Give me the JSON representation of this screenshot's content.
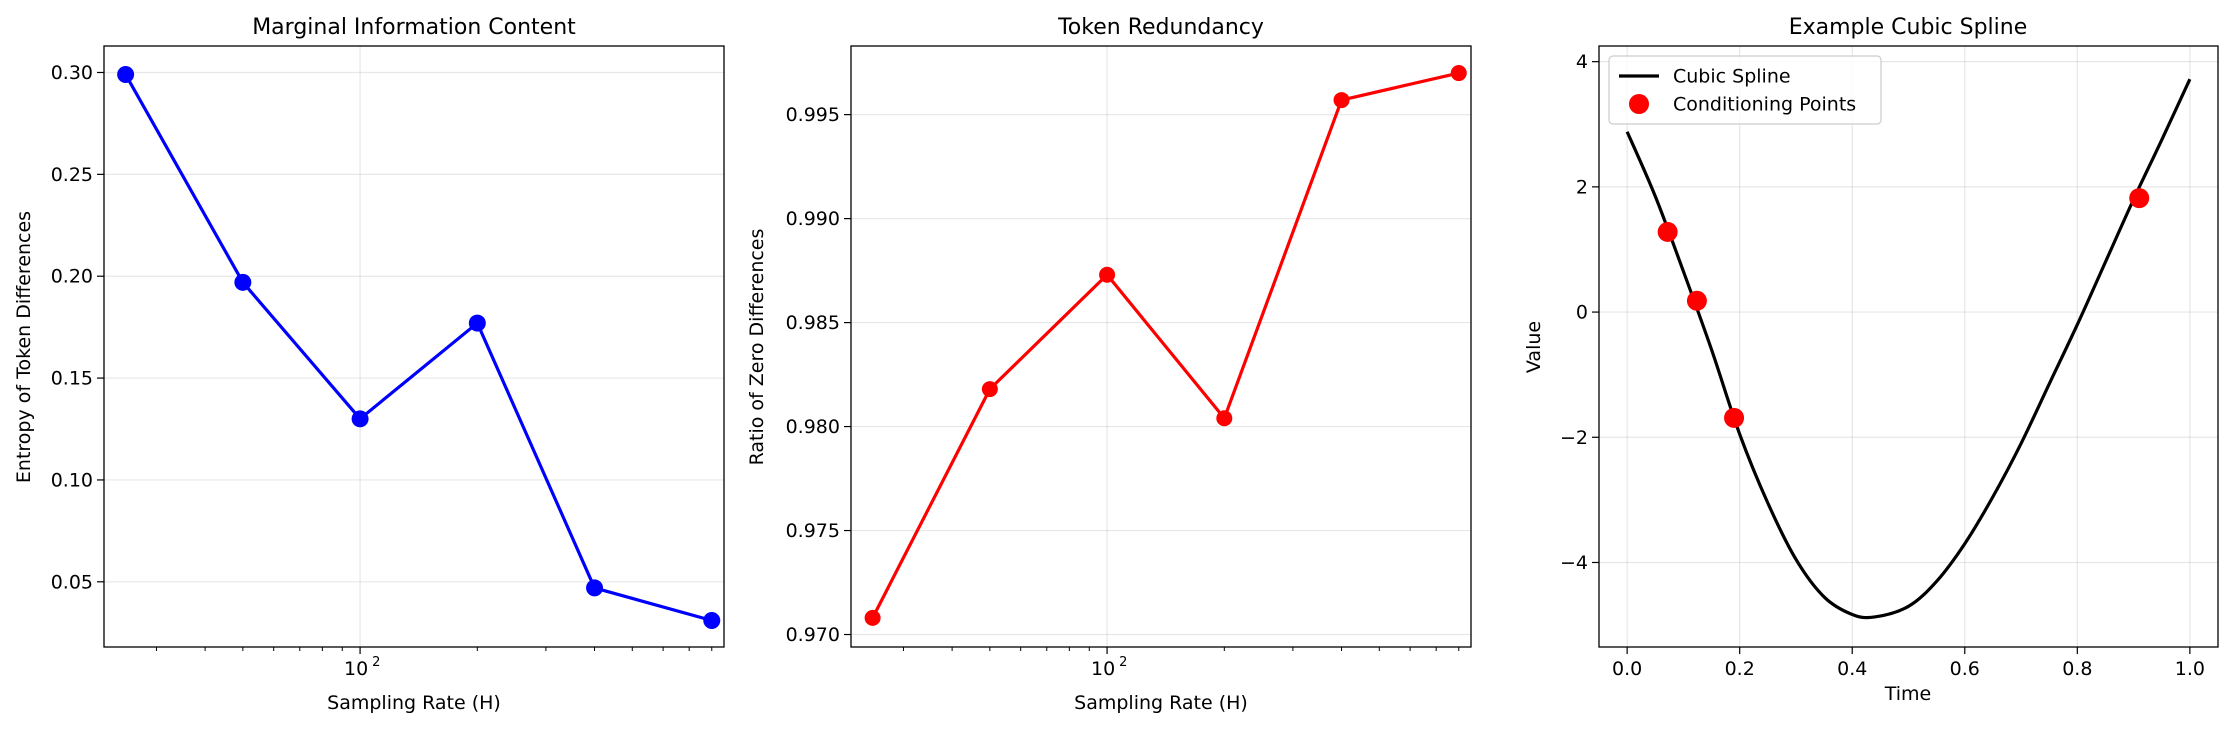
{
  "chart_data": [
    {
      "type": "line",
      "title": "Marginal Information Content",
      "xlabel": "Sampling Rate (H)",
      "ylabel": "Entropy of Token Differences",
      "xscale": "log",
      "xlim": [
        22,
        860
      ],
      "ylim": [
        0.018,
        0.313
      ],
      "x_major_ticks": [
        100
      ],
      "x_tick_labels": [
        "10",
        "2"
      ],
      "yticks": [
        0.05,
        0.1,
        0.15,
        0.2,
        0.25,
        0.3
      ],
      "y_tick_labels": [
        "0.05",
        "0.10",
        "0.15",
        "0.20",
        "0.25",
        "0.30"
      ],
      "grid": true,
      "color": "#0000ff",
      "series": [
        {
          "x": [
            25,
            50,
            100,
            200,
            400,
            800
          ],
          "y": [
            0.299,
            0.197,
            0.13,
            0.177,
            0.047,
            0.031
          ]
        }
      ]
    },
    {
      "type": "line",
      "title": "Token Redundancy",
      "xlabel": "Sampling Rate (H)",
      "ylabel": "Ratio of Zero Differences",
      "xscale": "log",
      "xlim": [
        22,
        860
      ],
      "ylim": [
        0.9694,
        0.9983
      ],
      "x_major_ticks": [
        100
      ],
      "x_tick_labels": [
        "10",
        "2"
      ],
      "yticks": [
        0.97,
        0.975,
        0.98,
        0.985,
        0.99,
        0.995
      ],
      "y_tick_labels": [
        "0.970",
        "0.975",
        "0.980",
        "0.985",
        "0.990",
        "0.995"
      ],
      "grid": true,
      "color": "#ff0000",
      "series": [
        {
          "x": [
            25,
            50,
            100,
            200,
            400,
            800
          ],
          "y": [
            0.9708,
            0.9818,
            0.9873,
            0.9804,
            0.9957,
            0.997
          ]
        }
      ]
    },
    {
      "type": "line",
      "title": "Example Cubic Spline",
      "xlabel": "Time",
      "ylabel": "Value",
      "xlim": [
        -0.05,
        1.05
      ],
      "ylim": [
        -5.35,
        4.25
      ],
      "xticks": [
        0.0,
        0.2,
        0.4,
        0.6,
        0.8,
        1.0
      ],
      "x_tick_labels": [
        "0.0",
        "0.2",
        "0.4",
        "0.6",
        "0.8",
        "1.0"
      ],
      "yticks": [
        -4,
        -2,
        0,
        2,
        4
      ],
      "y_tick_labels": [
        "−4",
        "−2",
        "0",
        "2",
        "4"
      ],
      "grid": true,
      "legend": "top-left",
      "series": [
        {
          "name": "Cubic Spline",
          "color": "#000000",
          "x": [
            0.0,
            0.05,
            0.1,
            0.15,
            0.2,
            0.25,
            0.3,
            0.35,
            0.4,
            0.44,
            0.5,
            0.55,
            0.6,
            0.65,
            0.7,
            0.75,
            0.8,
            0.85,
            0.9,
            0.95,
            1.0
          ],
          "y": [
            2.88,
            1.85,
            0.65,
            -0.6,
            -1.95,
            -3.05,
            -3.95,
            -4.55,
            -4.83,
            -4.87,
            -4.7,
            -4.3,
            -3.7,
            -2.95,
            -2.1,
            -1.15,
            -0.2,
            0.8,
            1.8,
            2.75,
            3.72
          ]
        },
        {
          "name": "Conditioning Points",
          "color": "#ff0000",
          "x": [
            0.072,
            0.124,
            0.19,
            0.91
          ],
          "y": [
            1.28,
            0.18,
            -1.69,
            1.82
          ]
        }
      ]
    }
  ]
}
